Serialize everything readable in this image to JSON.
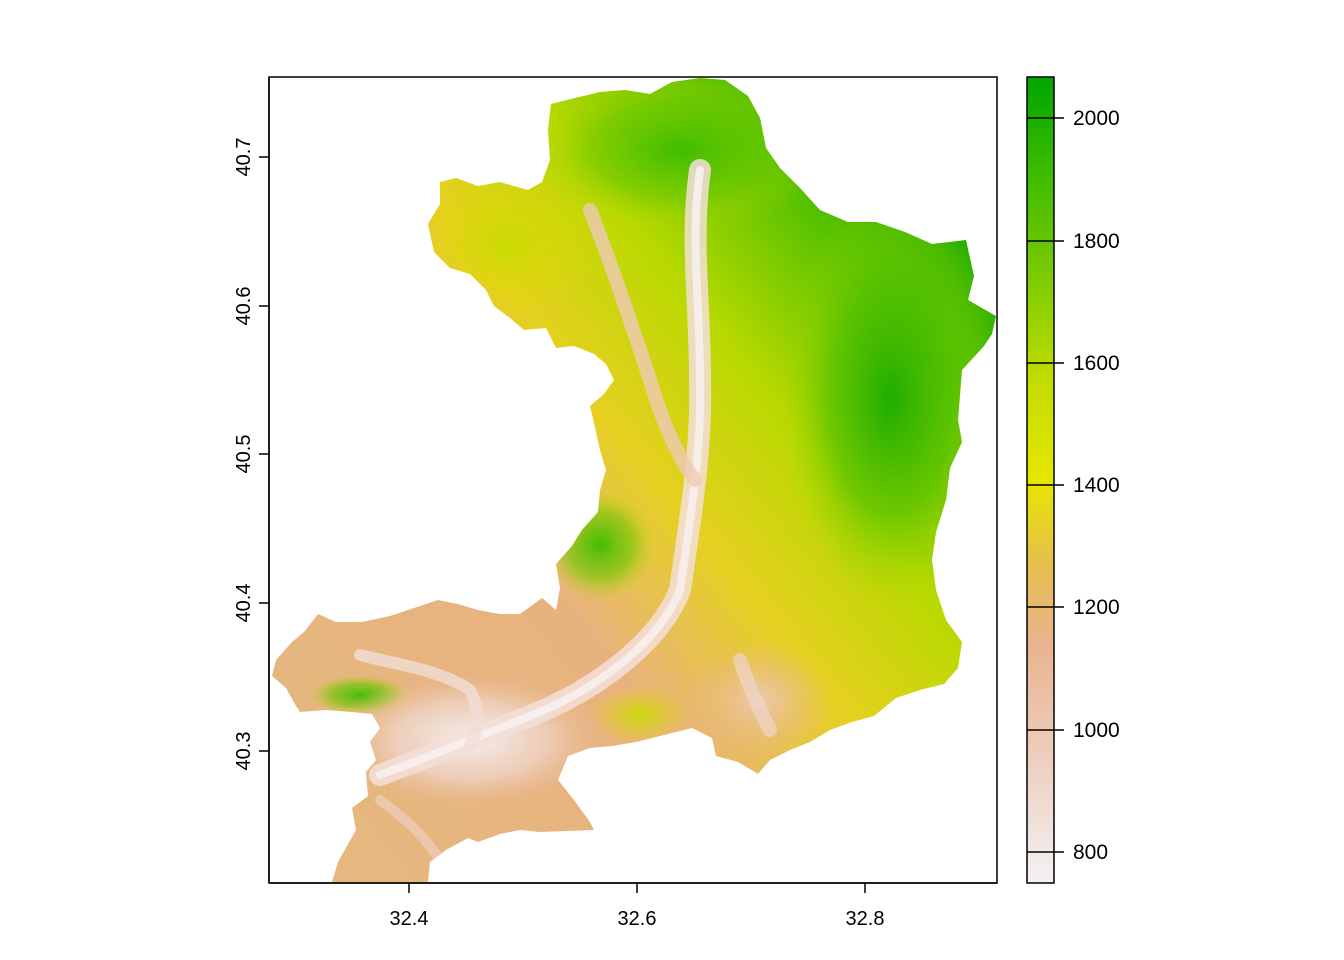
{
  "map": {
    "type": "raster",
    "x_ticks": [
      "32.4",
      "32.6",
      "32.8"
    ],
    "y_ticks": [
      "40.3",
      "40.4",
      "40.5",
      "40.6",
      "40.7"
    ],
    "xlim": [
      32.28,
      32.92
    ],
    "ylim": [
      40.21,
      40.755
    ],
    "region_shape": "elevation raster of a mountainous administrative district; valleys (low, light pink/white) run from north-center to south-west; highlands (green) in north and east"
  },
  "legend": {
    "range": [
      750,
      2070
    ],
    "ticks": [
      "800",
      "1000",
      "1200",
      "1400",
      "1600",
      "1800",
      "2000"
    ],
    "colors": [
      "#f2f2f2",
      "#eecfc1",
      "#e9b38c",
      "#e6c04a",
      "#e6e600",
      "#9ed400",
      "#3ebb00",
      "#00a600"
    ]
  },
  "chart_data": {
    "type": "heatmap",
    "xlabel": "",
    "ylabel": "",
    "x_ticks": [
      32.4,
      32.6,
      32.8
    ],
    "y_ticks": [
      40.3,
      40.4,
      40.5,
      40.6,
      40.7
    ],
    "xlim": [
      32.28,
      32.92
    ],
    "ylim": [
      40.21,
      40.755
    ],
    "legend_ticks": [
      800,
      1000,
      1200,
      1400,
      1600,
      1800,
      2000
    ],
    "legend_range": [
      750,
      2070
    ]
  }
}
